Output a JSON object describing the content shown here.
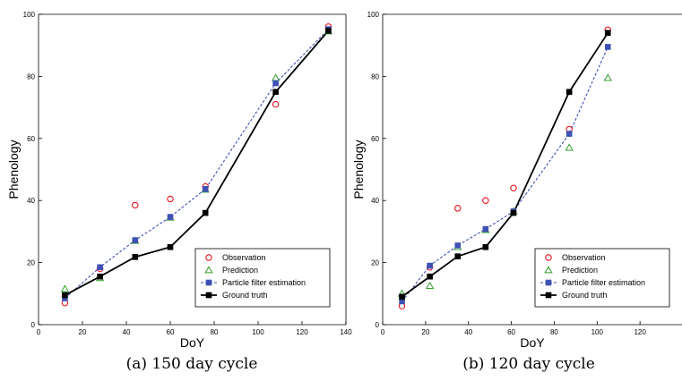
{
  "chart_data": [
    {
      "type": "line",
      "caption": "(a)  150 day cycle",
      "xlabel": "DoY",
      "ylabel": "Phenology",
      "xlim": [
        0,
        140
      ],
      "ylim": [
        0,
        100
      ],
      "xticks": [
        0,
        20,
        40,
        60,
        80,
        100,
        120,
        140
      ],
      "yticks": [
        0,
        20,
        40,
        60,
        80,
        100
      ],
      "grid": false,
      "legend_position": "bottom-right",
      "series": [
        {
          "name": "Observation",
          "marker": "circle-open",
          "line": "none",
          "color": "#e8000b",
          "x": [
            12,
            28,
            44,
            60,
            76,
            108,
            132
          ],
          "y": [
            7,
            18,
            38.5,
            40.5,
            44.5,
            71,
            96
          ]
        },
        {
          "name": "Prediction",
          "marker": "triangle-open",
          "line": "none",
          "color": "#33a02c",
          "x": [
            12,
            28,
            44,
            60,
            76,
            108,
            132
          ],
          "y": [
            11.5,
            15,
            27,
            34.5,
            43.5,
            79.5,
            94.5
          ]
        },
        {
          "name": "Particle filter estimation",
          "marker": "square",
          "line": "dashed",
          "color": "#3f51b5",
          "x": [
            12,
            28,
            44,
            60,
            76,
            108,
            132
          ],
          "y": [
            8.5,
            18.5,
            27.2,
            34.7,
            43.7,
            77.8,
            95.2
          ]
        },
        {
          "name": "Ground truth",
          "marker": "square",
          "line": "solid",
          "color": "#000000",
          "x": [
            12,
            28,
            44,
            60,
            76,
            108,
            132
          ],
          "y": [
            9.5,
            15.5,
            21.8,
            25,
            36,
            75,
            94.7
          ]
        }
      ]
    },
    {
      "type": "line",
      "caption": "(b)  120 day cycle",
      "xlabel": "DoY",
      "ylabel": "Phenology",
      "xlim": [
        0,
        140
      ],
      "ylim": [
        0,
        100
      ],
      "xticks": [
        0,
        20,
        40,
        60,
        80,
        100,
        120
      ],
      "yticks": [
        0,
        20,
        40,
        60,
        80,
        100
      ],
      "grid": false,
      "legend_position": "bottom-right",
      "series": [
        {
          "name": "Observation",
          "marker": "circle-open",
          "line": "none",
          "color": "#e8000b",
          "x": [
            9,
            22,
            35,
            48,
            61,
            87,
            105
          ],
          "y": [
            6,
            18.5,
            37.5,
            40,
            44,
            63,
            95
          ]
        },
        {
          "name": "Prediction",
          "marker": "triangle-open",
          "line": "none",
          "color": "#33a02c",
          "x": [
            9,
            22,
            35,
            48,
            61,
            87,
            105
          ],
          "y": [
            10,
            12.5,
            25,
            30.5,
            36.5,
            57,
            79.5
          ]
        },
        {
          "name": "Particle filter estimation",
          "marker": "square",
          "line": "dashed",
          "color": "#3f51b5",
          "x": [
            9,
            22,
            35,
            48,
            61,
            87,
            105
          ],
          "y": [
            7.5,
            19,
            25.5,
            30.8,
            36.5,
            61.5,
            89.5
          ]
        },
        {
          "name": "Ground truth",
          "marker": "square",
          "line": "solid",
          "color": "#000000",
          "x": [
            9,
            22,
            35,
            48,
            61,
            87,
            105
          ],
          "y": [
            9,
            15.5,
            22,
            25,
            36,
            75,
            94
          ]
        }
      ]
    }
  ]
}
